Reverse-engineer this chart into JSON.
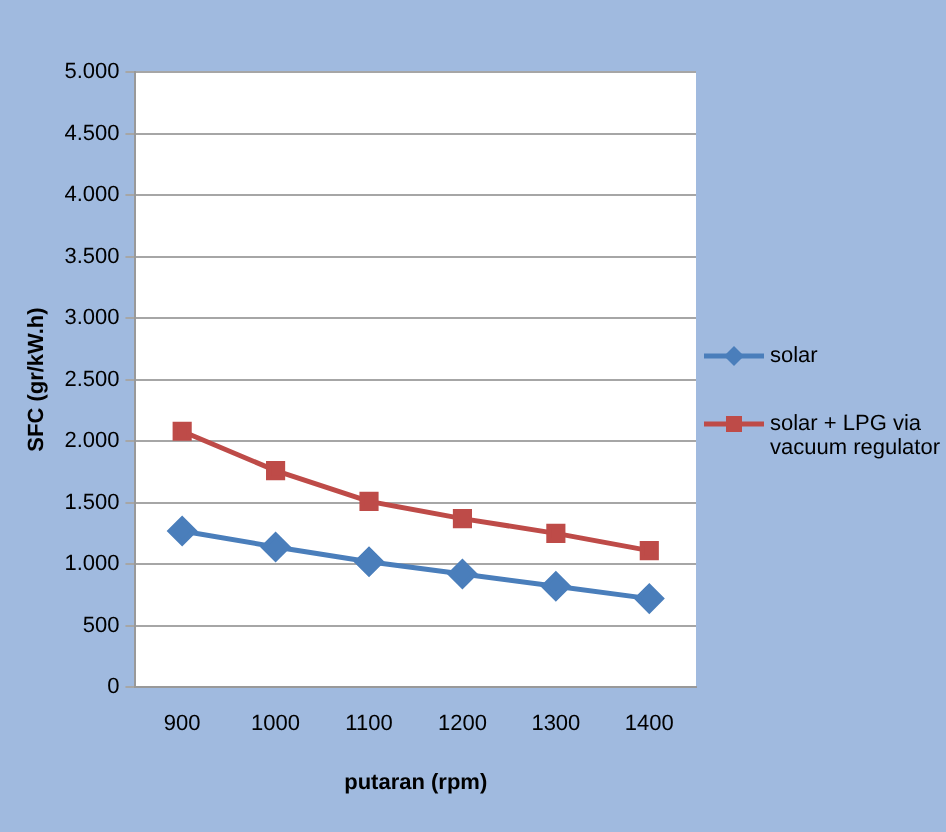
{
  "chart_data": {
    "type": "line",
    "xlabel": "putaran (rpm)",
    "ylabel": "SFC (gr/kW.h)",
    "categories": [
      "900",
      "1000",
      "1100",
      "1200",
      "1300",
      "1400"
    ],
    "series": [
      {
        "name": "solar",
        "color": "#4a7ebb",
        "values": [
          1270,
          1140,
          1020,
          920,
          820,
          720
        ],
        "marker": "diamond"
      },
      {
        "name": "solar + LPG via vacuum regulator",
        "color": "#be4b48",
        "values": [
          2080,
          1760,
          1510,
          1370,
          1250,
          1110
        ],
        "marker": "square"
      }
    ],
    "ylim": [
      0,
      5000
    ],
    "yticks": [
      0,
      {
        "value": 500,
        "label": "500"
      },
      {
        "value": 1000,
        "label": "1.000"
      },
      {
        "value": 1500,
        "label": "1.500"
      },
      {
        "value": 2000,
        "label": "2.000"
      },
      {
        "value": 2500,
        "label": "2.500"
      },
      {
        "value": 3000,
        "label": "3.000"
      },
      {
        "value": 3500,
        "label": "3.500"
      },
      {
        "value": 4000,
        "label": "4.000"
      },
      {
        "value": 4500,
        "label": "4.500"
      },
      {
        "value": 5000,
        "label": "5.000"
      }
    ],
    "grid": "y",
    "legend": "right",
    "line_style": "solid"
  }
}
